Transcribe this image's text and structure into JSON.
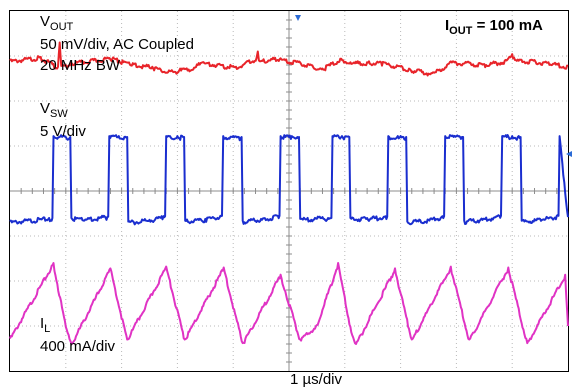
{
  "chart_data": {
    "type": "line",
    "title": "",
    "xlabel": "1 µs/div",
    "ylabel": "",
    "grid": true,
    "x_divisions": 10,
    "y_divisions": 8,
    "x_unit": "µs",
    "x_per_div": 1,
    "xlim": [
      0,
      10
    ],
    "ylim": [
      0,
      8
    ],
    "y_values_unit": "divisions from bottom of screen",
    "annotation": {
      "main": "I",
      "sub": "OUT",
      "suffix": " = 100 mA"
    },
    "channels": [
      {
        "name": "VOUT",
        "label_main": "V",
        "label_sub": "OUT",
        "scale_label": "50 mV/div, AC Coupled",
        "extra_label": "20 MHz BW",
        "color": "#e8242a",
        "points": [
          [
            0,
            6.9
          ],
          [
            0.55,
            6.98
          ],
          [
            0.86,
            6.76
          ],
          [
            0.89,
            7.3
          ],
          [
            0.92,
            6.78
          ],
          [
            1.1,
            6.85
          ],
          [
            1.85,
            6.97
          ],
          [
            1.95,
            6.9
          ],
          [
            2.2,
            6.84
          ],
          [
            2.55,
            6.76
          ],
          [
            2.95,
            6.65
          ],
          [
            3.05,
            6.72
          ],
          [
            3.2,
            6.7
          ],
          [
            3.45,
            6.86
          ],
          [
            4.05,
            6.76
          ],
          [
            4.42,
            6.96
          ],
          [
            4.44,
            7.1
          ],
          [
            4.46,
            6.9
          ],
          [
            4.75,
            6.96
          ],
          [
            5.35,
            6.82
          ],
          [
            5.6,
            6.72
          ],
          [
            5.92,
            6.94
          ],
          [
            6.1,
            6.86
          ],
          [
            6.4,
            6.86
          ],
          [
            6.65,
            6.86
          ],
          [
            7.15,
            6.72
          ],
          [
            7.55,
            6.62
          ],
          [
            7.7,
            6.7
          ],
          [
            7.9,
            6.88
          ],
          [
            8.5,
            6.82
          ],
          [
            8.9,
            6.9
          ],
          [
            9.0,
            7.04
          ],
          [
            9.1,
            6.92
          ],
          [
            9.65,
            6.86
          ],
          [
            10,
            6.78
          ]
        ]
      },
      {
        "name": "VSW",
        "label_main": "V",
        "label_sub": "SW",
        "scale_label": "5 V/div",
        "color": "#1a2ecf",
        "points": [
          [
            0,
            3.32
          ],
          [
            0.7,
            3.4
          ],
          [
            0.76,
            3.4
          ],
          [
            0.78,
            5.22
          ],
          [
            0.95,
            5.22
          ],
          [
            1.0,
            5.2
          ],
          [
            1.08,
            5.2
          ],
          [
            1.1,
            3.4
          ],
          [
            1.4,
            3.4
          ],
          [
            1.7,
            3.43
          ],
          [
            1.76,
            3.43
          ],
          [
            1.78,
            5.22
          ],
          [
            1.95,
            5.22
          ],
          [
            2.05,
            5.2
          ],
          [
            2.1,
            5.2
          ],
          [
            2.12,
            3.32
          ],
          [
            2.5,
            3.36
          ],
          [
            2.75,
            3.44
          ],
          [
            2.78,
            3.44
          ],
          [
            2.8,
            5.22
          ],
          [
            3.0,
            5.22
          ],
          [
            3.1,
            5.2
          ],
          [
            3.12,
            5.2
          ],
          [
            3.14,
            3.34
          ],
          [
            3.5,
            3.38
          ],
          [
            3.77,
            3.45
          ],
          [
            3.8,
            3.45
          ],
          [
            3.82,
            5.22
          ],
          [
            4.0,
            5.22
          ],
          [
            4.1,
            5.2
          ],
          [
            4.15,
            5.2
          ],
          [
            4.17,
            3.34
          ],
          [
            4.5,
            3.38
          ],
          [
            4.8,
            3.45
          ],
          [
            4.83,
            3.45
          ],
          [
            4.85,
            5.22
          ],
          [
            5.05,
            5.22
          ],
          [
            5.15,
            5.2
          ],
          [
            5.18,
            5.2
          ],
          [
            5.2,
            3.38
          ],
          [
            5.6,
            3.42
          ],
          [
            10,
            3.42
          ]
        ]
      },
      {
        "name": "IL",
        "label_main": "I",
        "label_sub": "L",
        "scale_label": "400 mA/div",
        "color": "#e033c4",
        "points": [
          [
            0,
            0.72
          ],
          [
            0.78,
            2.4
          ],
          [
            1.0,
            0.98
          ],
          [
            1.1,
            0.6
          ],
          [
            1.8,
            2.28
          ],
          [
            2.1,
            0.7
          ],
          [
            2.8,
            2.32
          ],
          [
            3.13,
            0.7
          ],
          [
            3.83,
            2.3
          ],
          [
            4.17,
            0.62
          ],
          [
            4.85,
            2.14
          ],
          [
            5.2,
            0.7
          ],
          [
            5.5,
            1.02
          ]
        ]
      }
    ]
  }
}
